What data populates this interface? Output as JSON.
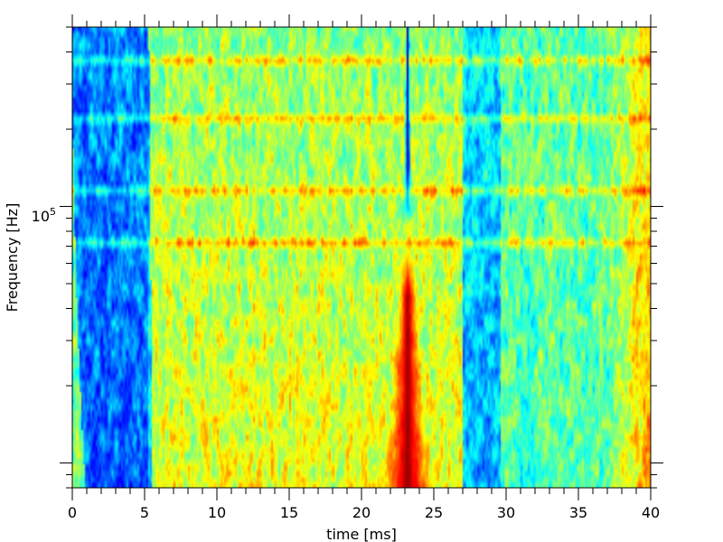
{
  "chart_data": {
    "type": "heatmap",
    "title": "",
    "xlabel": "time [ms]",
    "ylabel": "Frequency [Hz]",
    "xlim": [
      0,
      40
    ],
    "ylim": [
      8000,
      500000
    ],
    "yscale": "log",
    "colormap": "jet",
    "grid": false,
    "x_ticks": [
      0,
      5,
      10,
      15,
      20,
      25,
      30,
      35,
      40
    ],
    "x_tick_labels": [
      "0",
      "5",
      "10",
      "15",
      "20",
      "25",
      "30",
      "35",
      "40"
    ],
    "y_tick_labels": [
      {
        "value": 100000,
        "base": "10",
        "exponent": "5"
      }
    ],
    "features": [
      {
        "name": "pulse",
        "time_ms": 23.2,
        "freq_range_hz": [
          8000,
          450000
        ],
        "level": "min-to-max"
      },
      {
        "name": "quiet-interval-1",
        "time_range_ms": [
          0,
          5.3
        ]
      },
      {
        "name": "quiet-interval-2",
        "time_range_ms": [
          27,
          29.5
        ]
      },
      {
        "name": "tonal-lines",
        "freq_hz": [
          370000,
          220000,
          115000,
          72000
        ]
      }
    ]
  },
  "colors": {
    "low": "#00007f",
    "high": "#7f0000"
  }
}
